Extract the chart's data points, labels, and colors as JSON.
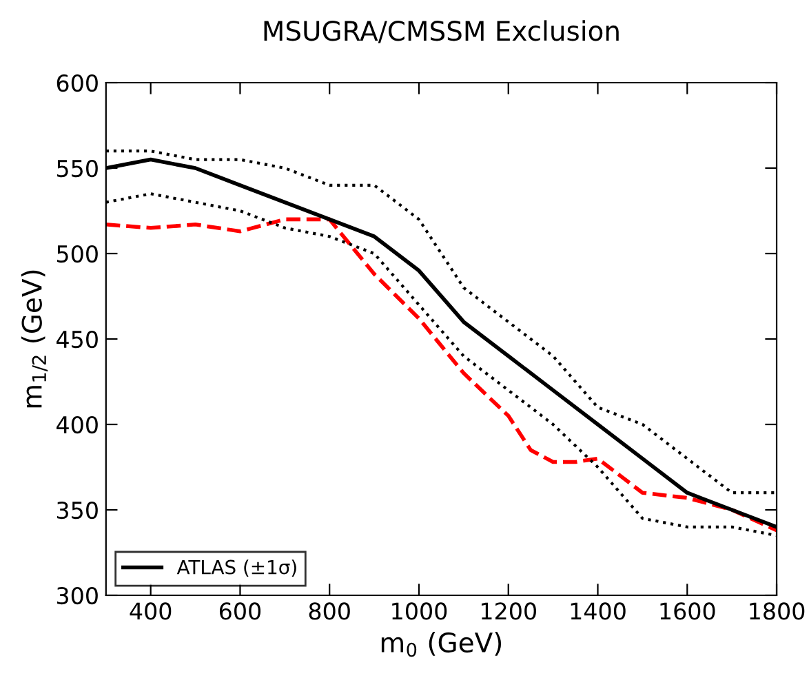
{
  "chart_data": {
    "type": "line",
    "title": "MSUGRA/CMSSM Exclusion",
    "xlabel": "m$_{0}$ (GeV)",
    "ylabel": "m$_{1/2}$ (GeV)",
    "xlim": [
      300,
      1800
    ],
    "xticks": [
      400,
      600,
      800,
      1000,
      1200,
      1400,
      1600,
      1800
    ],
    "ylim": [
      300,
      600
    ],
    "yticks": [
      300,
      350,
      400,
      450,
      500,
      550,
      600
    ],
    "grid": false,
    "legend": "bottom left",
    "marker": "none",
    "series": [
      {
        "color": "#ff0000",
        "line_style": "dashed",
        "x": [
          300,
          400,
          500,
          600,
          700,
          800,
          900,
          1000,
          1100,
          1200,
          1250,
          1300,
          1350,
          1400,
          1450,
          1500,
          1600,
          1700,
          1800
        ],
        "values": [
          517,
          515,
          517,
          513,
          520,
          520,
          488,
          462,
          430,
          405,
          385,
          378,
          378,
          380,
          370,
          360,
          357,
          350,
          338
        ]
      },
      {
        "name": "ATLAS (±1σ)",
        "color": "#000000",
        "line_style": "solid",
        "x": [
          300,
          400,
          500,
          600,
          700,
          800,
          900,
          1000,
          1100,
          1200,
          1300,
          1400,
          1500,
          1600,
          1700,
          1800
        ],
        "values": [
          550,
          555,
          550,
          540,
          530,
          520,
          510,
          490,
          460,
          440,
          420,
          400,
          380,
          360,
          350,
          340
        ]
      },
      {
        "color": "#000000",
        "line_style": "dotted",
        "x": [
          300,
          400,
          500,
          600,
          700,
          800,
          900,
          1000,
          1100,
          1200,
          1300,
          1400,
          1500,
          1600,
          1700,
          1800
        ],
        "values": [
          560,
          560,
          555,
          555,
          550,
          540,
          540,
          520,
          480,
          460,
          440,
          410,
          400,
          380,
          360,
          360
        ]
      },
      {
        "color": "#000000",
        "line_style": "dotted",
        "x": [
          300,
          400,
          500,
          600,
          700,
          800,
          900,
          1000,
          1100,
          1200,
          1300,
          1400,
          1500,
          1600,
          1700,
          1800
        ],
        "values": [
          530,
          535,
          530,
          525,
          515,
          510,
          500,
          470,
          440,
          420,
          400,
          375,
          345,
          340,
          340,
          335
        ]
      }
    ]
  }
}
